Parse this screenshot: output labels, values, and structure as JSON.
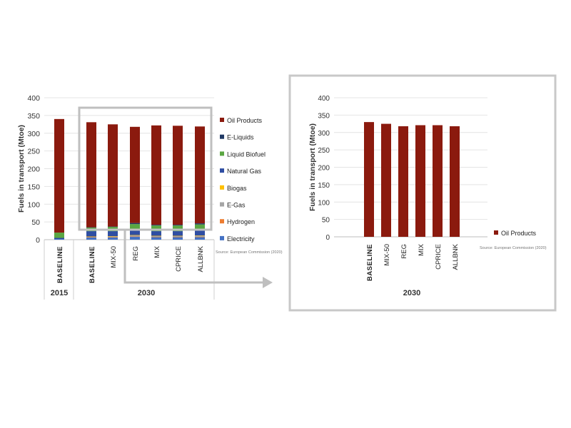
{
  "chart_data": [
    {
      "type": "bar",
      "stacked": true,
      "ylabel": "Fuels in transport (Mtoe)",
      "ylim": [
        0,
        400
      ],
      "yticks": [
        0,
        50,
        100,
        150,
        200,
        250,
        300,
        350,
        400
      ],
      "grid": true,
      "legend_position": "right",
      "groups": [
        {
          "label": "2015",
          "categories": [
            "BASELINE"
          ]
        },
        {
          "label": "2030",
          "categories": [
            "BASELINE",
            "MIX-50",
            "REG",
            "MIX",
            "CPRICE",
            "ALLBNK"
          ]
        }
      ],
      "bold_categories": [
        0,
        1
      ],
      "categories": [
        "BASELINE",
        "BASELINE",
        "MIX-50",
        "REG",
        "MIX",
        "CPRICE",
        "ALLBNK"
      ],
      "series": [
        {
          "name": "Electricity",
          "color": "#4472c4",
          "values": [
            2,
            6,
            6,
            8,
            7,
            7,
            7
          ]
        },
        {
          "name": "Hydrogen",
          "color": "#ed7d31",
          "values": [
            0,
            1,
            1,
            1,
            1,
            1,
            1
          ]
        },
        {
          "name": "E-Gas",
          "color": "#a5a5a5",
          "values": [
            0,
            1,
            2,
            3,
            2,
            2,
            3
          ]
        },
        {
          "name": "Biogas",
          "color": "#ffc000",
          "values": [
            0,
            1,
            1,
            1,
            1,
            1,
            1
          ]
        },
        {
          "name": "Natural Gas",
          "color": "#2f4ea2",
          "values": [
            3,
            15,
            14,
            13,
            13,
            13,
            14
          ]
        },
        {
          "name": "Liquid Biofuel",
          "color": "#5aa642",
          "values": [
            15,
            10,
            12,
            18,
            16,
            16,
            17
          ]
        },
        {
          "name": "E-Liquids",
          "color": "#1f3864",
          "values": [
            0,
            1,
            1,
            3,
            2,
            2,
            3
          ]
        },
        {
          "name": "Oil Products",
          "color": "#8b1a0e",
          "values": [
            320,
            296,
            288,
            271,
            280,
            279,
            273
          ]
        }
      ],
      "legend_order": [
        "Oil Products",
        "E-Liquids",
        "Liquid Biofuel",
        "Natural Gas",
        "Biogas",
        "E-Gas",
        "Hydrogen",
        "Electricity"
      ],
      "source": "Source: European Commission (2020)"
    },
    {
      "type": "bar",
      "ylabel": "Fuels in transport (Mtoe)",
      "ylim": [
        0,
        400
      ],
      "yticks": [
        0,
        50,
        100,
        150,
        200,
        250,
        300,
        350,
        400
      ],
      "grid": true,
      "legend_position": "right",
      "groups": [
        {
          "label": "2030",
          "categories": [
            "BASELINE",
            "MIX-50",
            "REG",
            "MIX",
            "CPRICE",
            "ALLBNK"
          ]
        }
      ],
      "bold_categories": [
        0
      ],
      "categories": [
        "BASELINE",
        "MIX-50",
        "REG",
        "MIX",
        "CPRICE",
        "ALLBNK"
      ],
      "series": [
        {
          "name": "Oil Products",
          "color": "#8b1a0e",
          "values": [
            330,
            325,
            318,
            321,
            321,
            318
          ]
        }
      ],
      "source": "Source: European Commission (2020)"
    }
  ]
}
